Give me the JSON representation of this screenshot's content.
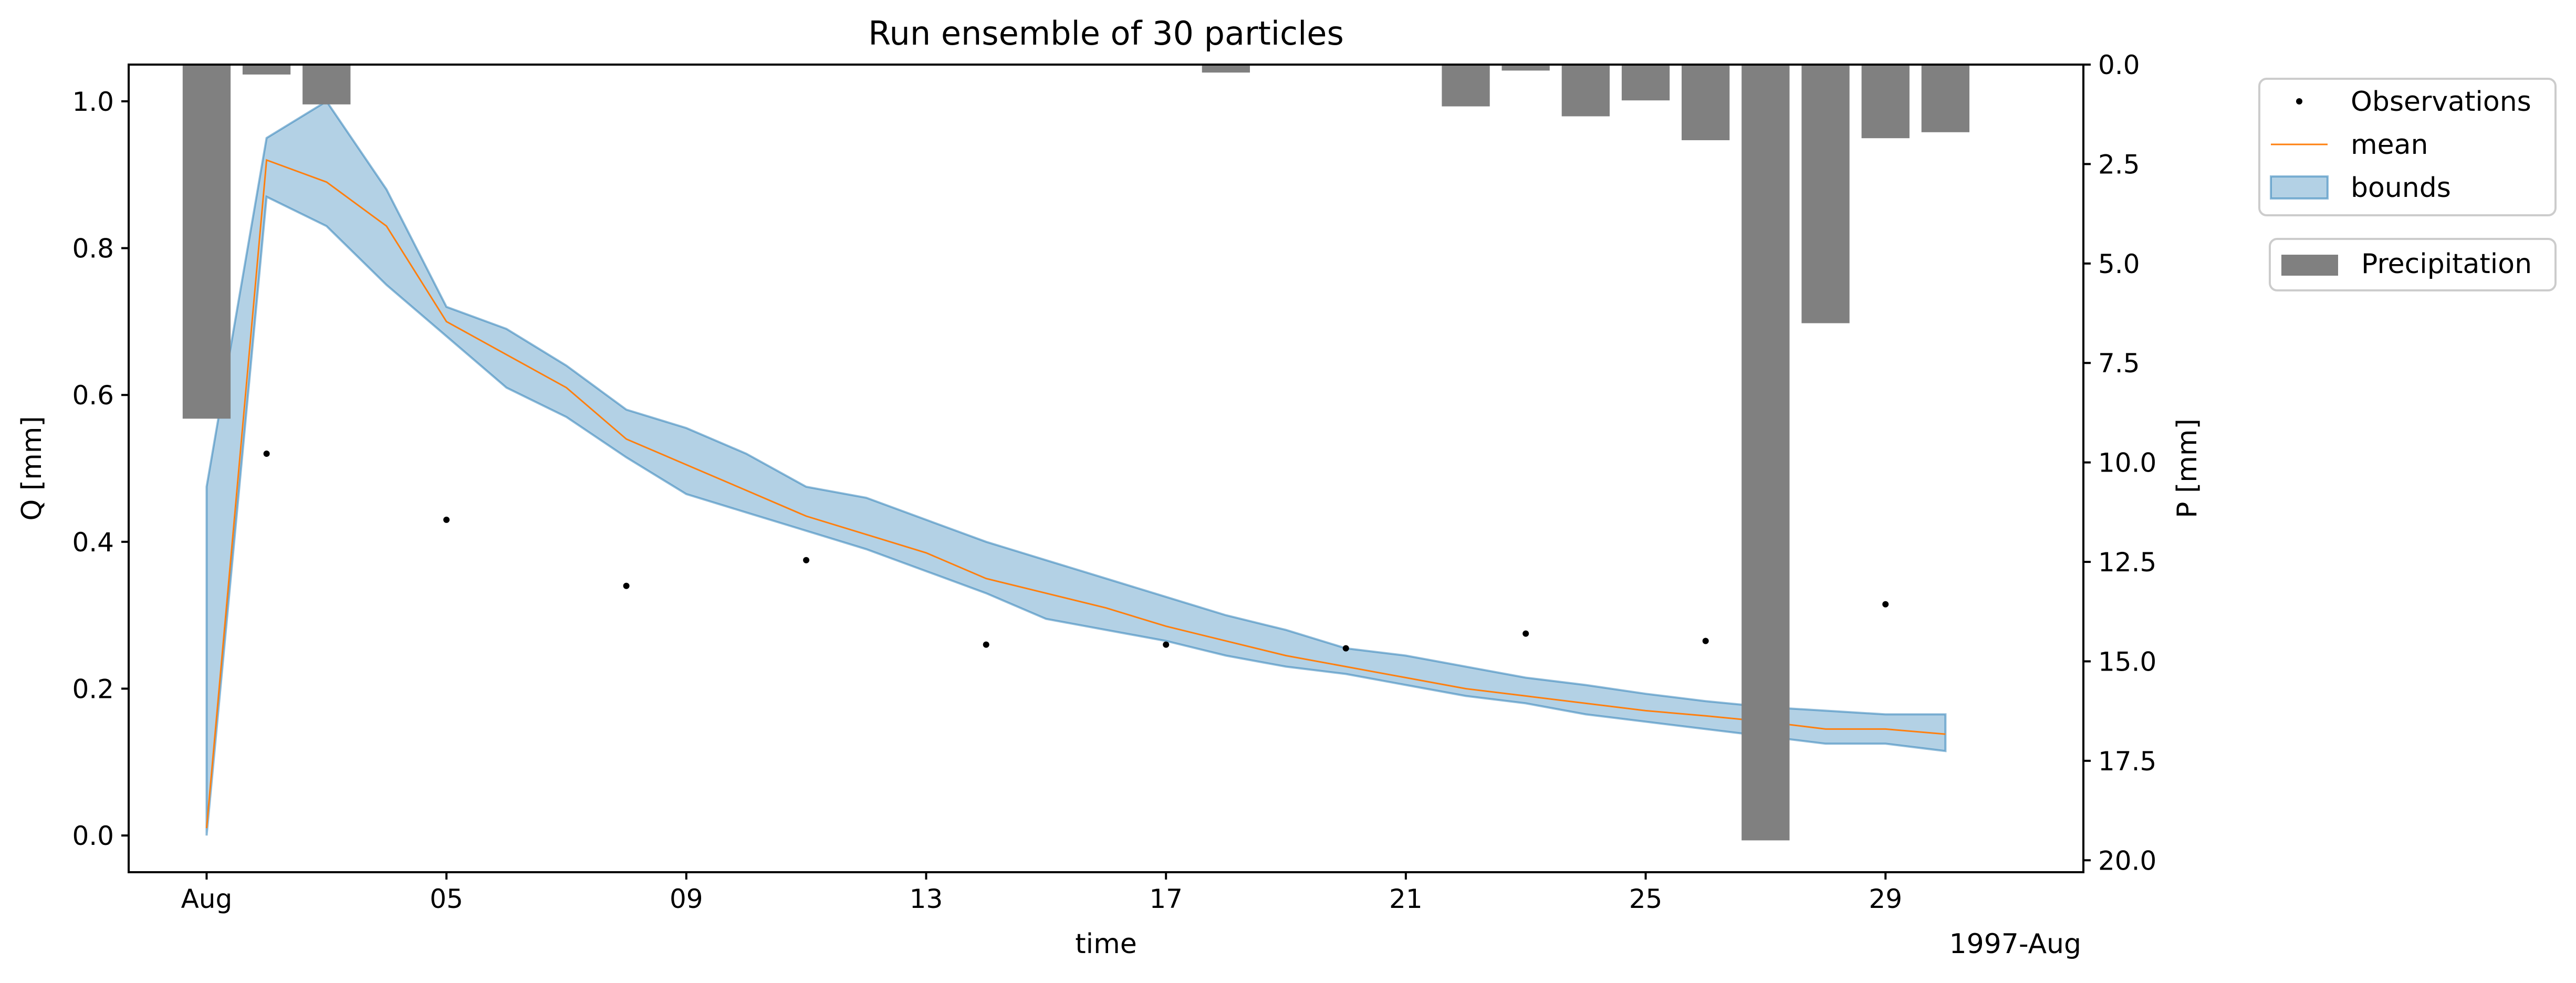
{
  "chart_data": {
    "type": "line",
    "title": "Run ensemble of 30 particles",
    "xlabel": "time",
    "x_offset_label": "1997-Aug",
    "ylabel_left": "Q [mm]",
    "ylabel_right": "P [mm]",
    "x_ticks": [
      {
        "day": 1,
        "label": "Aug"
      },
      {
        "day": 5,
        "label": "05"
      },
      {
        "day": 9,
        "label": "09"
      },
      {
        "day": 13,
        "label": "13"
      },
      {
        "day": 17,
        "label": "17"
      },
      {
        "day": 21,
        "label": "21"
      },
      {
        "day": 25,
        "label": "25"
      },
      {
        "day": 29,
        "label": "29"
      }
    ],
    "xlim": [
      -0.3,
      32.3
    ],
    "ylim_left": [
      -0.05,
      1.05
    ],
    "yticks_left": [
      "0.0",
      "0.2",
      "0.4",
      "0.6",
      "0.8",
      "1.0"
    ],
    "ylim_right": [
      20.3,
      0.0
    ],
    "yticks_right": [
      "0.0",
      "2.5",
      "5.0",
      "7.5",
      "10.0",
      "12.5",
      "15.0",
      "17.5",
      "20.0"
    ],
    "legend_position": "outside right",
    "colors": {
      "mean": "#ff7f0e",
      "bounds_fill": "#1f77b4",
      "precipitation": "#808080",
      "observations": "#000000"
    },
    "series": [
      {
        "name": "Observations",
        "kind": "points",
        "x": [
          2,
          5,
          8,
          11,
          14,
          17,
          20,
          23,
          26,
          29
        ],
        "y": [
          0.52,
          0.43,
          0.34,
          0.375,
          0.26,
          0.26,
          0.255,
          0.275,
          0.265,
          0.315
        ]
      },
      {
        "name": "mean",
        "kind": "line",
        "x": [
          1,
          2,
          3,
          4,
          5,
          6,
          7,
          8,
          9,
          10,
          11,
          12,
          13,
          14,
          15,
          16,
          17,
          18,
          19,
          20,
          21,
          22,
          23,
          24,
          25,
          26,
          27,
          28,
          29,
          30
        ],
        "y": [
          0.01,
          0.92,
          0.89,
          0.83,
          0.7,
          0.655,
          0.61,
          0.54,
          0.505,
          0.47,
          0.435,
          0.41,
          0.385,
          0.35,
          0.33,
          0.31,
          0.285,
          0.265,
          0.245,
          0.23,
          0.215,
          0.2,
          0.19,
          0.18,
          0.17,
          0.163,
          0.155,
          0.145,
          0.145,
          0.138
        ]
      },
      {
        "name": "bounds",
        "kind": "band",
        "x": [
          1,
          2,
          3,
          4,
          5,
          6,
          7,
          8,
          9,
          10,
          11,
          12,
          13,
          14,
          15,
          16,
          17,
          18,
          19,
          20,
          21,
          22,
          23,
          24,
          25,
          26,
          27,
          28,
          29,
          30
        ],
        "upper": [
          0.475,
          0.95,
          1.0,
          0.88,
          0.72,
          0.69,
          0.64,
          0.58,
          0.555,
          0.52,
          0.475,
          0.46,
          0.43,
          0.4,
          0.375,
          0.35,
          0.325,
          0.3,
          0.28,
          0.255,
          0.245,
          0.23,
          0.215,
          0.205,
          0.193,
          0.183,
          0.175,
          0.17,
          0.165,
          0.165
        ],
        "lower": [
          0.0,
          0.87,
          0.83,
          0.75,
          0.68,
          0.61,
          0.57,
          0.515,
          0.465,
          0.44,
          0.415,
          0.39,
          0.36,
          0.33,
          0.295,
          0.28,
          0.265,
          0.245,
          0.23,
          0.22,
          0.205,
          0.19,
          0.18,
          0.165,
          0.155,
          0.145,
          0.135,
          0.125,
          0.125,
          0.115
        ]
      },
      {
        "name": "Precipitation",
        "kind": "bar",
        "axis": "right",
        "x": [
          1,
          2,
          3,
          18,
          22,
          23,
          24,
          25,
          26,
          27,
          28,
          29,
          30
        ],
        "values": [
          8.9,
          0.25,
          1.0,
          0.2,
          1.05,
          0.15,
          1.3,
          0.9,
          1.9,
          19.5,
          6.5,
          1.85,
          1.7
        ]
      }
    ]
  }
}
